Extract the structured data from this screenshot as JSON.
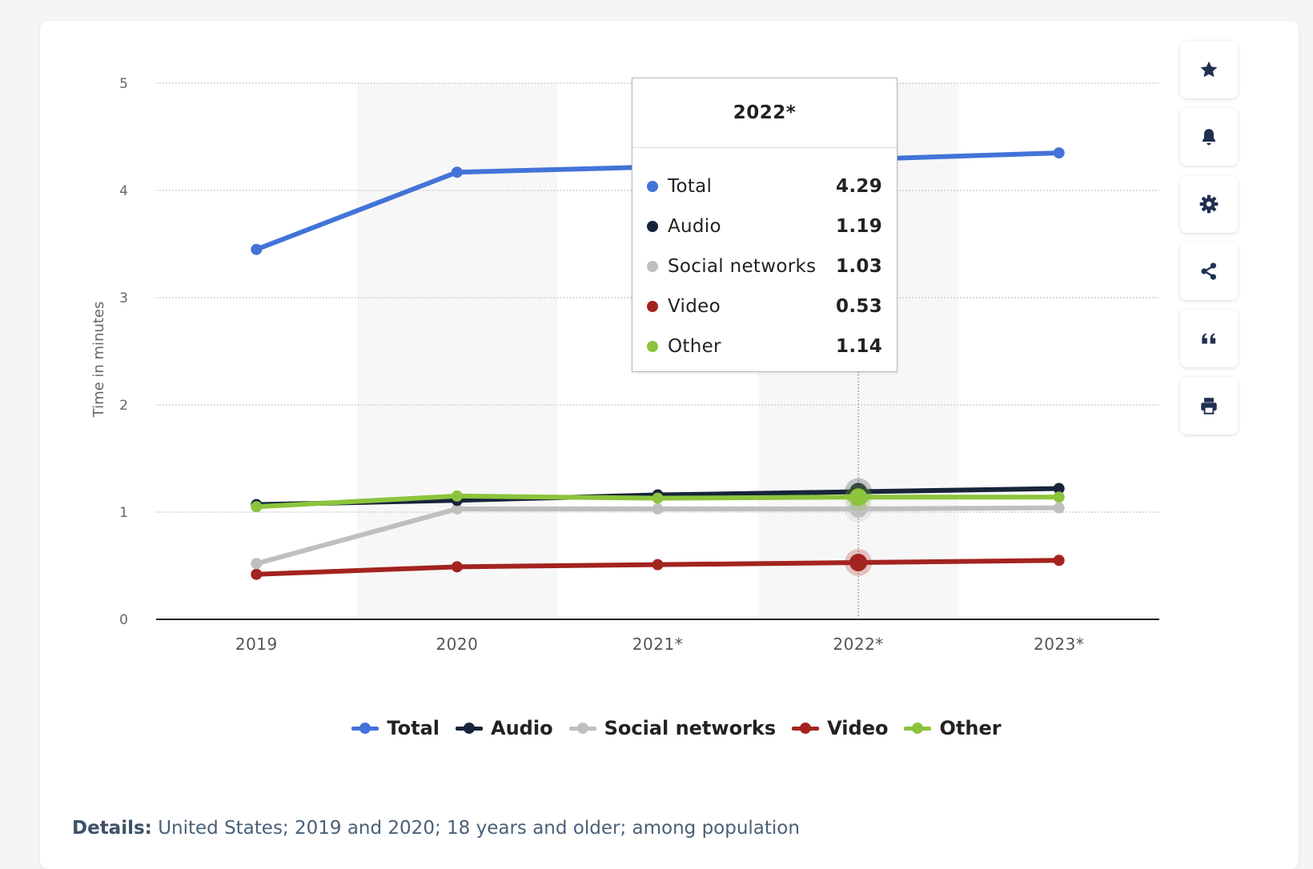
{
  "chart_data": {
    "type": "line",
    "x": [
      "2019",
      "2020",
      "2021*",
      "2022*",
      "2023*"
    ],
    "series": [
      {
        "name": "Total",
        "color": "#4373d9",
        "values": [
          3.45,
          4.17,
          4.22,
          4.29,
          4.35
        ]
      },
      {
        "name": "Audio",
        "color": "#18243a",
        "values": [
          1.07,
          1.11,
          1.16,
          1.19,
          1.22
        ]
      },
      {
        "name": "Social networks",
        "color": "#bfbfbf",
        "values": [
          0.52,
          1.03,
          1.03,
          1.03,
          1.04
        ]
      },
      {
        "name": "Video",
        "color": "#a3231f",
        "values": [
          0.42,
          0.49,
          0.51,
          0.53,
          0.55
        ]
      },
      {
        "name": "Other",
        "color": "#8cc43c",
        "values": [
          1.05,
          1.15,
          1.13,
          1.14,
          1.14
        ]
      }
    ],
    "ylabel": "Time in minutes",
    "ylim": [
      0,
      5
    ],
    "yticks": [
      "0",
      "1",
      "2",
      "3",
      "4",
      "5"
    ],
    "grid": true,
    "legend_position": "bottom",
    "highlighted_x": "2022*"
  },
  "tooltip": {
    "title": "2022*",
    "rows": [
      {
        "name": "Total",
        "value": "4.29",
        "color": "#4373d9"
      },
      {
        "name": "Audio",
        "value": "1.19",
        "color": "#18243a"
      },
      {
        "name": "Social networks",
        "value": "1.03",
        "color": "#bfbfbf"
      },
      {
        "name": "Video",
        "value": "0.53",
        "color": "#a3231f"
      },
      {
        "name": "Other",
        "value": "1.14",
        "color": "#8cc43c"
      }
    ]
  },
  "details": {
    "label": "Details:",
    "text": "United States; 2019 and 2020; 18 years and older; among population"
  },
  "toolbar": {
    "icons": [
      "star-icon",
      "bell-icon",
      "gear-icon",
      "share-icon",
      "quote-icon",
      "print-icon"
    ]
  }
}
